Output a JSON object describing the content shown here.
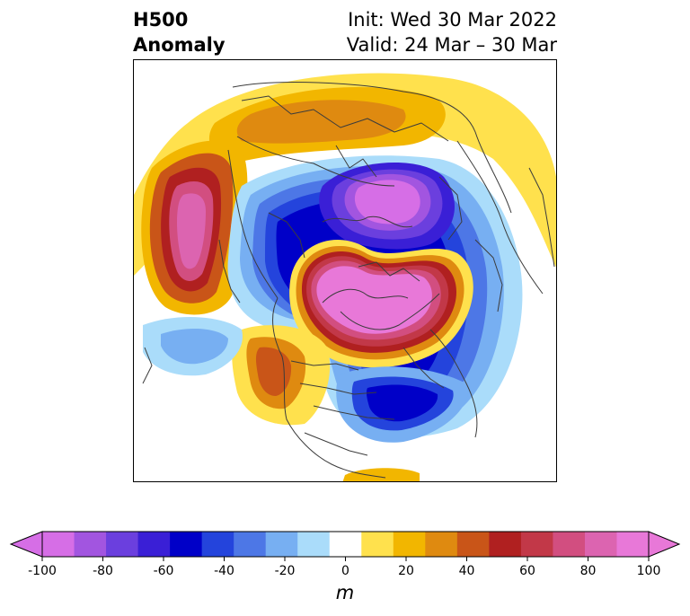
{
  "title": {
    "left_line1": "H500",
    "left_line2": "Anomaly",
    "right_line1": "Init: Wed 30 Mar 2022",
    "right_line2": "Valid: 24 Mar – 30 Mar"
  },
  "colorbar": {
    "unit_label": "m",
    "ticks": [
      "-100",
      "-80",
      "-60",
      "-40",
      "-20",
      "0",
      "20",
      "40",
      "60",
      "80",
      "100"
    ],
    "colors": [
      "#d66ee6",
      "#a255e0",
      "#6b3fde",
      "#3a1fd6",
      "#0000c8",
      "#2444dc",
      "#4d77e6",
      "#77aff2",
      "#aadcfa",
      "#ffffff",
      "#ffe14d",
      "#f2b600",
      "#df8a10",
      "#c95518",
      "#b02020",
      "#c23848",
      "#d24e80",
      "#dc64b0",
      "#e878d8"
    ],
    "under_color": "#d66ee6",
    "over_color": "#e878d8"
  }
}
